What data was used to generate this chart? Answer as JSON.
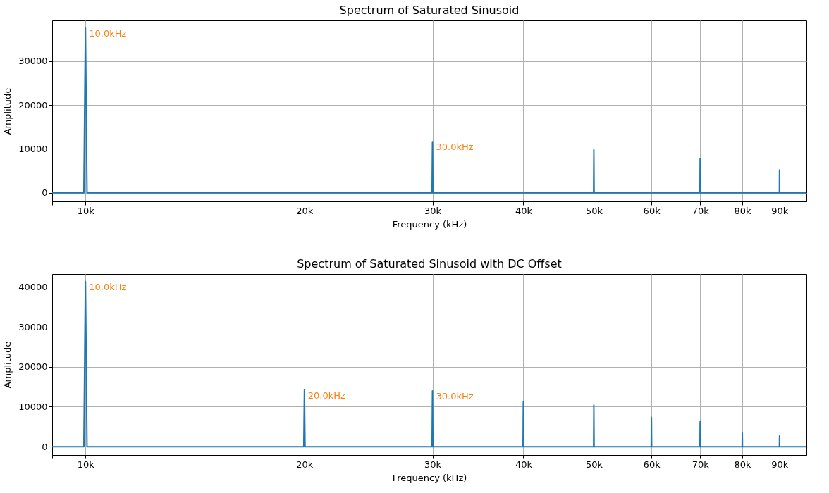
{
  "chart_data": [
    {
      "type": "line",
      "title": "Spectrum of Saturated Sinusoid",
      "xlabel": "Frequency (kHz)",
      "ylabel": "Amplitude",
      "log": "x",
      "grid": true,
      "xlim": [
        9000,
        98000
      ],
      "ylim": [
        -1960,
        39260
      ],
      "xticks": [
        {
          "value": 9000,
          "label": null
        },
        {
          "value": 10000,
          "label": "10k"
        },
        {
          "value": 20000,
          "label": "20k"
        },
        {
          "value": 30000,
          "label": "30k"
        },
        {
          "value": 40000,
          "label": "40k"
        },
        {
          "value": 50000,
          "label": "50k"
        },
        {
          "value": 60000,
          "label": "60k"
        },
        {
          "value": 70000,
          "label": "70k"
        },
        {
          "value": 80000,
          "label": "80k"
        },
        {
          "value": 90000,
          "label": "90k"
        }
      ],
      "yticks": [
        0,
        10000,
        20000,
        30000
      ],
      "series": [
        {
          "color": "#1f77b4",
          "x": [
            9000,
            9950,
            10000,
            10050,
            29960,
            30000,
            30040,
            49960,
            50000,
            50040,
            69960,
            70000,
            70040,
            89960,
            90000,
            90040,
            98000
          ],
          "values": [
            0,
            0,
            37550,
            0,
            0,
            11650,
            0,
            0,
            9800,
            0,
            0,
            7700,
            0,
            0,
            5200,
            0,
            0
          ]
        }
      ],
      "annotations": [
        {
          "text": "10.0kHz",
          "x": 10000,
          "y": 37550
        },
        {
          "text": "30.0kHz",
          "x": 30000,
          "y": 11650
        }
      ]
    },
    {
      "type": "line",
      "title": "Spectrum of Saturated Sinusoid with DC Offset",
      "xlabel": "Frequency (kHz)",
      "ylabel": "Amplitude",
      "log": "x",
      "grid": true,
      "xlim": [
        9000,
        98000
      ],
      "ylim": [
        -2090,
        43240
      ],
      "xticks": [
        {
          "value": 9000,
          "label": null
        },
        {
          "value": 10000,
          "label": "10k"
        },
        {
          "value": 20000,
          "label": "20k"
        },
        {
          "value": 30000,
          "label": "30k"
        },
        {
          "value": 40000,
          "label": "40k"
        },
        {
          "value": 50000,
          "label": "50k"
        },
        {
          "value": 60000,
          "label": "60k"
        },
        {
          "value": 70000,
          "label": "70k"
        },
        {
          "value": 80000,
          "label": "80k"
        },
        {
          "value": 90000,
          "label": "90k"
        }
      ],
      "yticks": [
        0,
        10000,
        20000,
        30000,
        40000
      ],
      "series": [
        {
          "color": "#1f77b4",
          "x": [
            9000,
            9950,
            10000,
            10050,
            19960,
            20000,
            20040,
            29960,
            30000,
            30040,
            39960,
            40000,
            40040,
            49960,
            50000,
            50040,
            59960,
            60000,
            60040,
            69960,
            70000,
            70040,
            79960,
            80000,
            80040,
            89960,
            90000,
            90040,
            98000
          ],
          "values": [
            0,
            0,
            41350,
            0,
            0,
            14200,
            0,
            0,
            13960,
            0,
            0,
            11280,
            0,
            0,
            10400,
            0,
            0,
            7300,
            0,
            0,
            6240,
            0,
            0,
            3420,
            0,
            0,
            2680,
            0,
            0
          ]
        }
      ],
      "annotations": [
        {
          "text": "10.0kHz",
          "x": 10000,
          "y": 41350
        },
        {
          "text": "20.0kHz",
          "x": 20000,
          "y": 14200
        },
        {
          "text": "30.0kHz",
          "x": 30000,
          "y": 13960
        }
      ]
    }
  ]
}
